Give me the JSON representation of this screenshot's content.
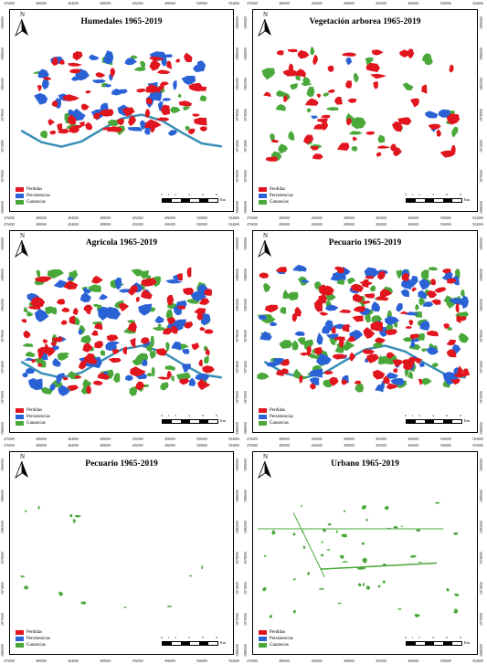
{
  "panels": [
    {
      "id": "humedales",
      "title": "Humedales 1965-2019",
      "legend": [
        "Perdidas",
        "Persistencias",
        "Ganancias"
      ],
      "layers": {
        "blue": 1.0,
        "red": 1.0,
        "green": 0.35
      },
      "theme": "wetland"
    },
    {
      "id": "vegetacion",
      "title": "Vegetación arborea 1965-2019",
      "legend": [
        "Perdidas",
        "Persistencias",
        "Ganancias"
      ],
      "layers": {
        "blue": 0.15,
        "red": 1.0,
        "green": 0.7
      },
      "theme": "forest"
    },
    {
      "id": "agricola",
      "title": "Agricola 1965-2019",
      "legend": [
        "Perdidas",
        "Persistencias",
        "Ganancias"
      ],
      "layers": {
        "blue": 1.0,
        "red": 1.0,
        "green": 1.0
      },
      "theme": "agri"
    },
    {
      "id": "pecuario1",
      "title": "Pecuario 1965-2019",
      "legend": [
        "Perdidas",
        "Persistencias",
        "Ganancias"
      ],
      "layers": {
        "blue": 1.0,
        "red": 1.0,
        "green": 1.0
      },
      "theme": "pasture"
    },
    {
      "id": "pecuario2",
      "title": "Pecuario 1965-2019",
      "legend": [
        "Perdidas",
        "Persistencias",
        "Ganancias"
      ],
      "layers": {
        "blue": 0.0,
        "red": 0.0,
        "green": 0.35
      },
      "theme": "sparse"
    },
    {
      "id": "urbano",
      "title": "Urbano 1965-2019",
      "legend": [
        "Perdidas",
        "Persistencias",
        "Ganancias"
      ],
      "layers": {
        "blue": 0.0,
        "red": 0.0,
        "green": 1.0
      },
      "theme": "urban"
    }
  ],
  "north_label": "N",
  "x_ticks": [
    "476000",
    "480000",
    "484000",
    "488000",
    "492000",
    "496000",
    "500000",
    "504000"
  ],
  "y_ticks": [
    "1990000",
    "1986000",
    "1982000",
    "1978000",
    "1974000",
    "1970000",
    "1966000"
  ],
  "scale": {
    "numbers": [
      "0",
      "1",
      "2",
      "4",
      "6",
      "8"
    ],
    "unit": "Km"
  },
  "colors": {
    "loss": "#e0151e",
    "persistence": "#2a62d6",
    "gain": "#4aa83b",
    "river": "#3a8fb6",
    "frame": "#000000"
  }
}
